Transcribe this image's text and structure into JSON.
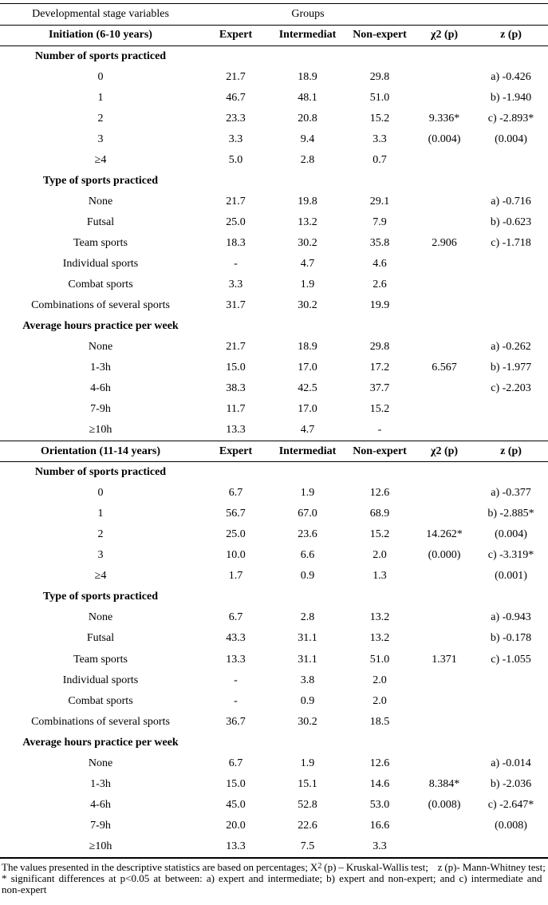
{
  "table": {
    "header1": {
      "stage_label": "Developmental stage variables",
      "groups_label": "Groups"
    },
    "column_headers": [
      "Expert",
      "Intermediat",
      "Non-expert",
      "χ2 (p)",
      "z (p)"
    ],
    "blocks": [
      {
        "title": "Initiation (6-10 years)",
        "sections": [
          {
            "name": "Number of sports practiced",
            "rows": [
              {
                "label": "0",
                "expert": "21.7",
                "intermediate": "18.9",
                "non_expert": "29.8",
                "chi2_p": "",
                "z_p": "a) -0.426"
              },
              {
                "label": "1",
                "expert": "46.7",
                "intermediate": "48.1",
                "non_expert": "51.0",
                "chi2_p": "",
                "z_p": "b) -1.940"
              },
              {
                "label": "2",
                "expert": "23.3",
                "intermediate": "20.8",
                "non_expert": "15.2",
                "chi2_p": "9.336*",
                "z_p": "c) -2.893*"
              },
              {
                "label": "3",
                "expert": "3.3",
                "intermediate": "9.4",
                "non_expert": "3.3",
                "chi2_p": "(0.004)",
                "z_p": "(0.004)"
              },
              {
                "label": "≥4",
                "expert": "5.0",
                "intermediate": "2.8",
                "non_expert": "0.7",
                "chi2_p": "",
                "z_p": ""
              }
            ]
          },
          {
            "name": "Type of sports practiced",
            "rows": [
              {
                "label": "None",
                "expert": "21.7",
                "intermediate": "19.8",
                "non_expert": "29.1",
                "chi2_p": "",
                "z_p": "a) -0.716"
              },
              {
                "label": "Futsal",
                "expert": "25.0",
                "intermediate": "13.2",
                "non_expert": "7.9",
                "chi2_p": "",
                "z_p": "b) -0.623"
              },
              {
                "label": "Team sports",
                "expert": "18.3",
                "intermediate": "30.2",
                "non_expert": "35.8",
                "chi2_p": "2.906",
                "z_p": "c) -1.718"
              },
              {
                "label": "Individual sports",
                "expert": "-",
                "intermediate": "4.7",
                "non_expert": "4.6",
                "chi2_p": "",
                "z_p": ""
              },
              {
                "label": "Combat sports",
                "expert": "3.3",
                "intermediate": "1.9",
                "non_expert": "2.6",
                "chi2_p": "",
                "z_p": ""
              },
              {
                "label": "Combinations of several sports",
                "expert": "31.7",
                "intermediate": "30.2",
                "non_expert": "19.9",
                "chi2_p": "",
                "z_p": ""
              }
            ]
          },
          {
            "name": "Average hours practice per week",
            "rows": [
              {
                "label": "None",
                "expert": "21.7",
                "intermediate": "18.9",
                "non_expert": "29.8",
                "chi2_p": "",
                "z_p": "a) -0.262"
              },
              {
                "label": "1-3h",
                "expert": "15.0",
                "intermediate": "17.0",
                "non_expert": "17.2",
                "chi2_p": "6.567",
                "z_p": "b) -1.977"
              },
              {
                "label": "4-6h",
                "expert": "38.3",
                "intermediate": "42.5",
                "non_expert": "37.7",
                "chi2_p": "",
                "z_p": "c) -2.203"
              },
              {
                "label": "7-9h",
                "expert": "11.7",
                "intermediate": "17.0",
                "non_expert": "15.2",
                "chi2_p": "",
                "z_p": ""
              },
              {
                "label": "≥10h",
                "expert": "13.3",
                "intermediate": "4.7",
                "non_expert": "-",
                "chi2_p": "",
                "z_p": ""
              }
            ]
          }
        ]
      },
      {
        "title": "Orientation (11-14 years)",
        "sections": [
          {
            "name": "Number of sports practiced",
            "rows": [
              {
                "label": "0",
                "expert": "6.7",
                "intermediate": "1.9",
                "non_expert": "12.6",
                "chi2_p": "",
                "z_p": "a) -0.377"
              },
              {
                "label": "1",
                "expert": "56.7",
                "intermediate": "67.0",
                "non_expert": "68.9",
                "chi2_p": "",
                "z_p": "b) -2.885*"
              },
              {
                "label": "2",
                "expert": "25.0",
                "intermediate": "23.6",
                "non_expert": "15.2",
                "chi2_p": "14.262*",
                "z_p": "(0.004)"
              },
              {
                "label": "3",
                "expert": "10.0",
                "intermediate": "6.6",
                "non_expert": "2.0",
                "chi2_p": "(0.000)",
                "z_p": "c) -3.319*"
              },
              {
                "label": "≥4",
                "expert": "1.7",
                "intermediate": "0.9",
                "non_expert": "1.3",
                "chi2_p": "",
                "z_p": "(0.001)"
              }
            ]
          },
          {
            "name": "Type of sports practiced",
            "rows": [
              {
                "label": "None",
                "expert": "6.7",
                "intermediate": "2.8",
                "non_expert": "13.2",
                "chi2_p": "",
                "z_p": "a) -0.943"
              },
              {
                "label": "Futsal",
                "expert": "43.3",
                "intermediate": "31.1",
                "non_expert": "13.2",
                "chi2_p": "",
                "z_p": "b) -0.178"
              },
              {
                "label": "Team sports",
                "expert": "13.3",
                "intermediate": "31.1",
                "non_expert": "51.0",
                "chi2_p": "1.371",
                "z_p": "c) -1.055"
              },
              {
                "label": "Individual sports",
                "expert": "-",
                "intermediate": "3.8",
                "non_expert": "2.0",
                "chi2_p": "",
                "z_p": ""
              },
              {
                "label": "Combat sports",
                "expert": "-",
                "intermediate": "0.9",
                "non_expert": "2.0",
                "chi2_p": "",
                "z_p": ""
              },
              {
                "label": "Combinations of several sports",
                "expert": "36.7",
                "intermediate": "30.2",
                "non_expert": "18.5",
                "chi2_p": "",
                "z_p": ""
              }
            ]
          },
          {
            "name": "Average hours practice per week",
            "rows": [
              {
                "label": "None",
                "expert": "6.7",
                "intermediate": "1.9",
                "non_expert": "12.6",
                "chi2_p": "",
                "z_p": "a) -0.014"
              },
              {
                "label": "1-3h",
                "expert": "15.0",
                "intermediate": "15.1",
                "non_expert": "14.6",
                "chi2_p": "8.384*",
                "z_p": "b) -2.036"
              },
              {
                "label": "4-6h",
                "expert": "45.0",
                "intermediate": "52.8",
                "non_expert": "53.0",
                "chi2_p": "(0.008)",
                "z_p": "c) -2.647*"
              },
              {
                "label": "7-9h",
                "expert": "20.0",
                "intermediate": "22.6",
                "non_expert": "16.6",
                "chi2_p": "",
                "z_p": "(0.008)"
              },
              {
                "label": "≥10h",
                "expert": "13.3",
                "intermediate": "7.5",
                "non_expert": "3.3",
                "chi2_p": "",
                "z_p": ""
              }
            ]
          }
        ]
      }
    ]
  },
  "footnote": {
    "lines": [
      [
        {
          "t": "The values presented in the descriptive statistics are based on percentages; X"
        },
        {
          "t": "2",
          "sup": true
        },
        {
          "t": " (p) – Kruskal-Wallis test;    z (p)- Mann-Whitney test;"
        }
      ],
      [
        {
          "t": "* significant differences at p<0.05 at between: a) expert and intermediate; b) expert and non-expert; and c) intermediate and"
        }
      ],
      [
        {
          "t": "non-expert"
        }
      ]
    ]
  }
}
